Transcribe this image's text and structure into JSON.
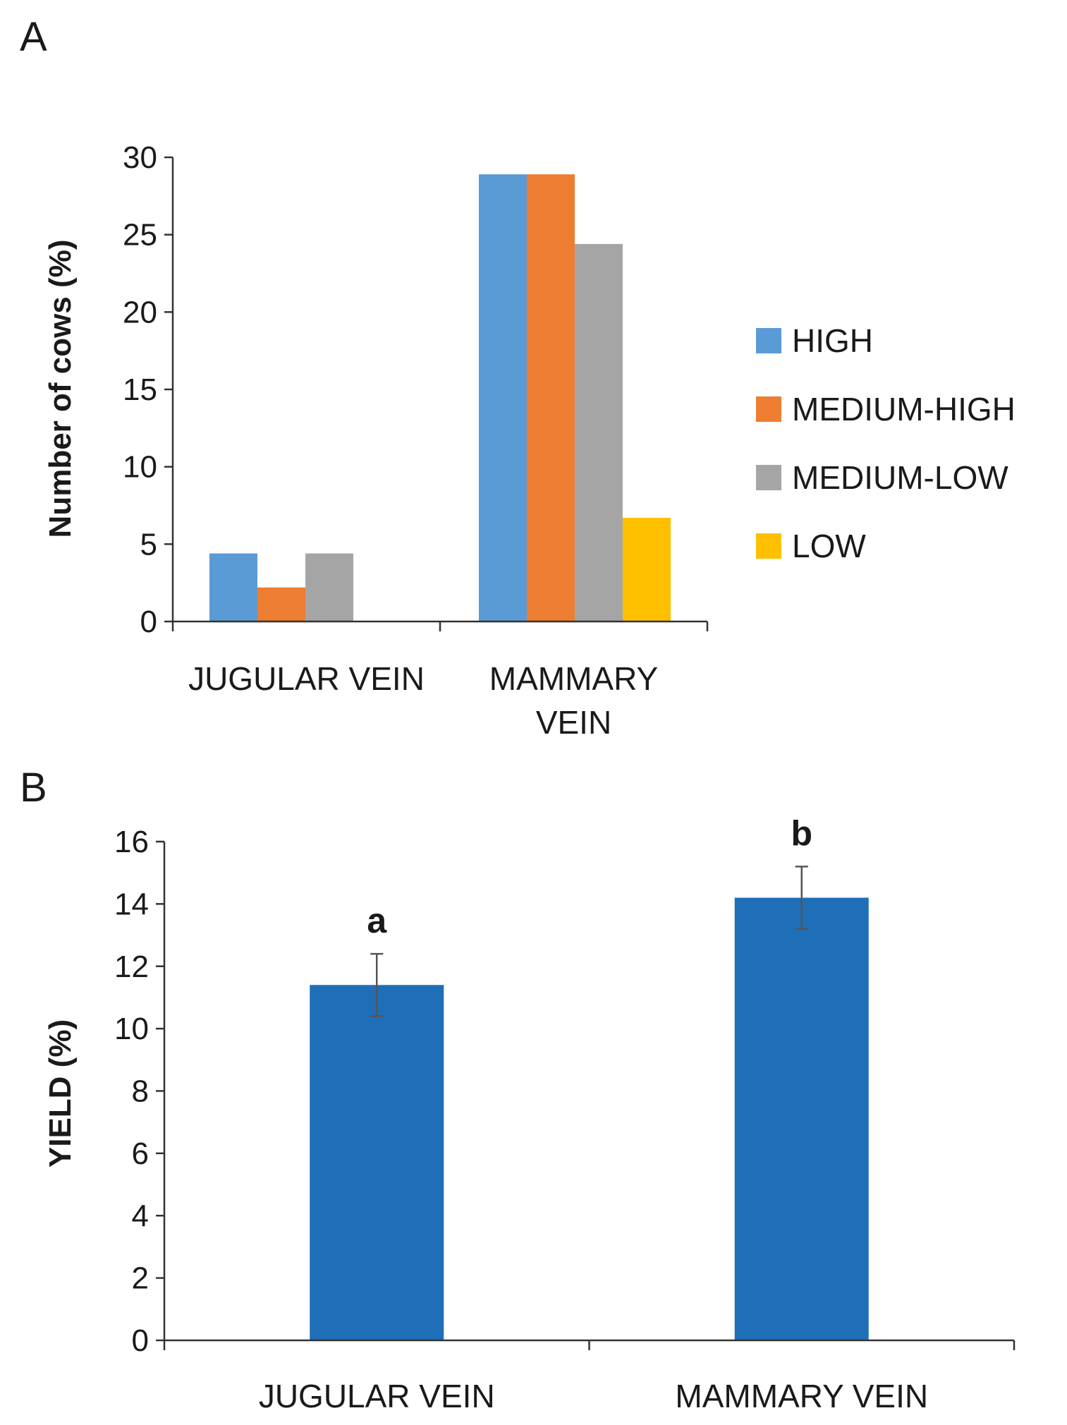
{
  "chart_data": [
    {
      "panel": "A",
      "type": "bar",
      "categories": [
        "JUGULAR VEIN",
        "MAMMARY VEIN"
      ],
      "category_label_lines": [
        [
          "JUGULAR VEIN"
        ],
        [
          "MAMMARY",
          "VEIN"
        ]
      ],
      "series": [
        {
          "name": "HIGH",
          "color": "#5b9bd5",
          "values": [
            4.4,
            28.9
          ]
        },
        {
          "name": "MEDIUM-HIGH",
          "color": "#ed7d31",
          "values": [
            2.2,
            28.9
          ]
        },
        {
          "name": "MEDIUM-LOW",
          "color": "#a5a5a5",
          "values": [
            4.4,
            24.4
          ]
        },
        {
          "name": "LOW",
          "color": "#ffc000",
          "values": [
            0,
            6.7
          ]
        }
      ],
      "title": "",
      "xlabel": "",
      "ylabel": "Number of cows (%)",
      "ylim": [
        0,
        30
      ],
      "yticks": [
        "0",
        "5",
        "10",
        "15",
        "20",
        "25",
        "30"
      ],
      "legend_position": "right",
      "grid": false
    },
    {
      "panel": "B",
      "type": "bar",
      "categories": [
        "JUGULAR VEIN",
        "MAMMARY VEIN"
      ],
      "series": [
        {
          "name": "YIELD",
          "color": "#1f6eb8",
          "values": [
            11.4,
            14.2
          ],
          "errors": [
            1.0,
            1.0
          ]
        }
      ],
      "annotations": [
        "a",
        "b"
      ],
      "title": "",
      "xlabel": "",
      "ylabel": "YIELD (%)",
      "ylim": [
        0,
        16
      ],
      "yticks": [
        "0",
        "2",
        "4",
        "6",
        "8",
        "10",
        "12",
        "14",
        "16"
      ],
      "grid": false
    }
  ]
}
